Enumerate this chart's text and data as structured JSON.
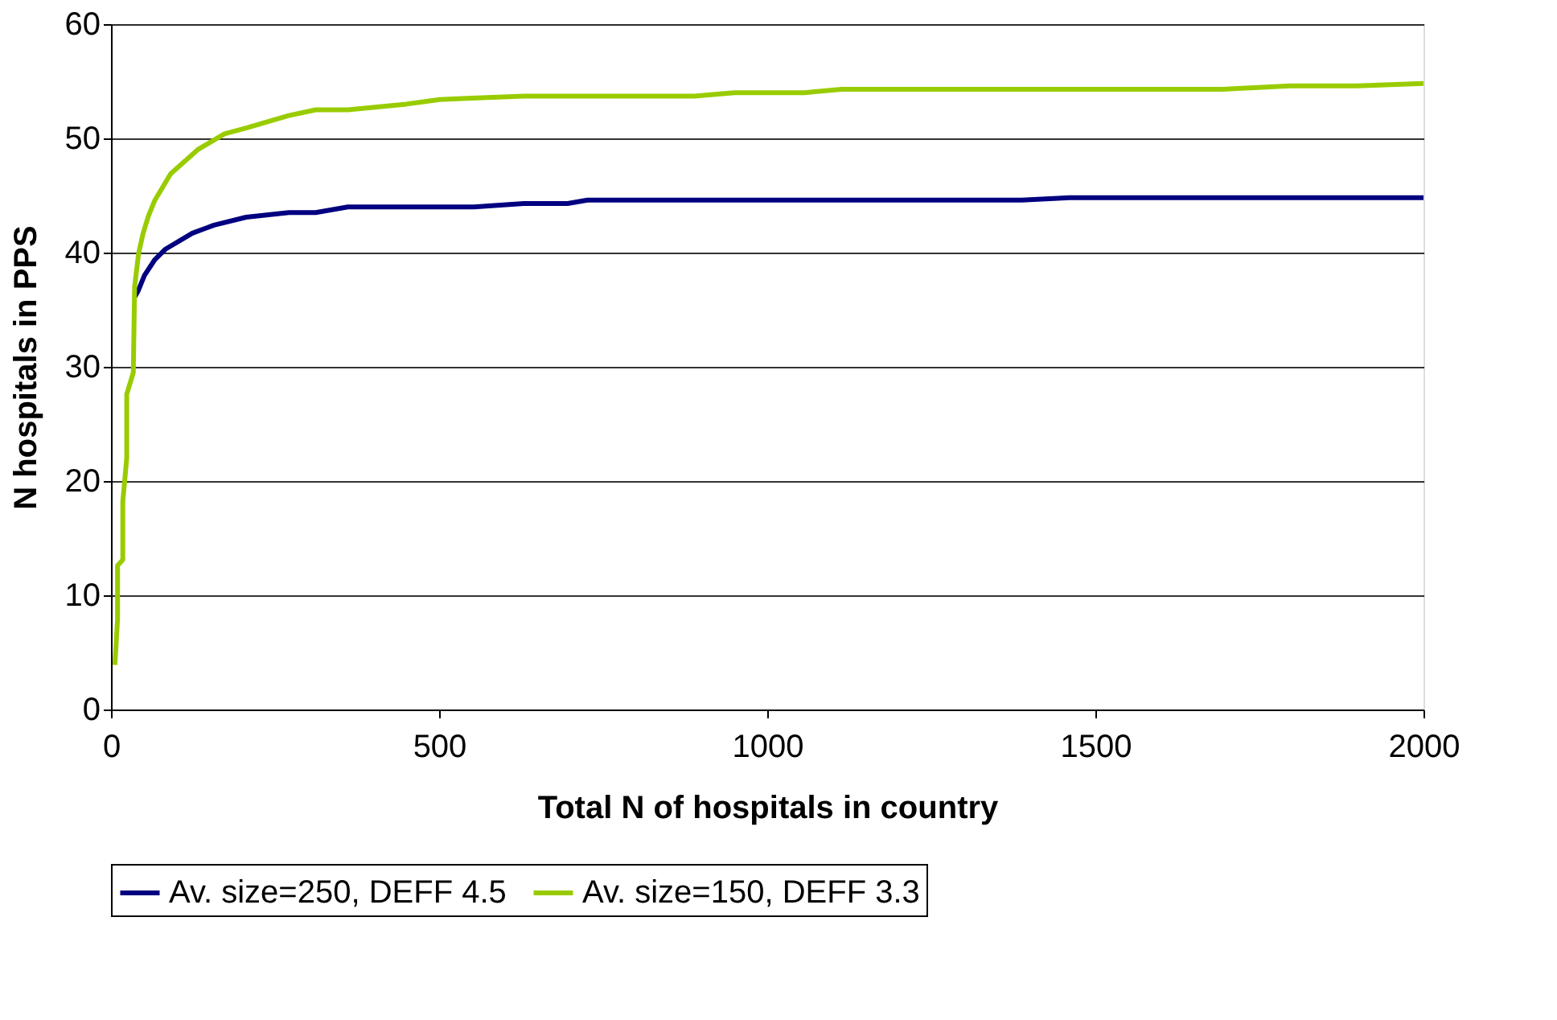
{
  "chart_data": {
    "type": "line",
    "xlabel": "Total N of hospitals in country",
    "ylabel": "N hospitals in PPS",
    "xlim": [
      0,
      2000
    ],
    "xticks": [
      0,
      500,
      1000,
      1500,
      2000
    ],
    "ylim": [
      0,
      60
    ],
    "yticks": [
      0,
      10,
      20,
      30,
      40,
      50,
      60
    ],
    "grid": "y",
    "legend": "bottom",
    "marker": "none",
    "line_style": "solid",
    "series": [
      {
        "name": "Av. size=250, DEFF 4.5",
        "color": "#000080",
        "x": [
          36,
          41,
          51,
          67,
          83,
          124,
          157,
          206,
          271,
          312,
          361,
          553,
          629,
          696,
          726,
          1388,
          1461,
          2000
        ],
        "values": [
          36.1,
          36.6,
          38.0,
          39.4,
          40.3,
          41.7,
          42.4,
          43.1,
          43.5,
          43.5,
          44.0,
          44.0,
          44.3,
          44.3,
          44.6,
          44.6,
          44.8,
          44.8
        ]
      },
      {
        "name": "Av. size=150, DEFF 3.3",
        "color": "#99cc00",
        "x": [
          6,
          10,
          10,
          18,
          18,
          24,
          24,
          34,
          36,
          42,
          49,
          57,
          67,
          91,
          132,
          173,
          206,
          271,
          312,
          361,
          450,
          501,
          542,
          629,
          889,
          950,
          1057,
          1113,
          1694,
          1797,
          1899,
          2000
        ],
        "values": [
          3.9,
          7.9,
          12.6,
          13.1,
          18.2,
          22,
          27.6,
          29.5,
          37.0,
          39.9,
          41.7,
          43.2,
          44.6,
          46.9,
          49.0,
          50.4,
          50.9,
          52.0,
          52.5,
          52.5,
          53.0,
          53.4,
          53.5,
          53.7,
          53.7,
          54.0,
          54.0,
          54.3,
          54.3,
          54.6,
          54.6,
          54.8
        ]
      }
    ]
  }
}
